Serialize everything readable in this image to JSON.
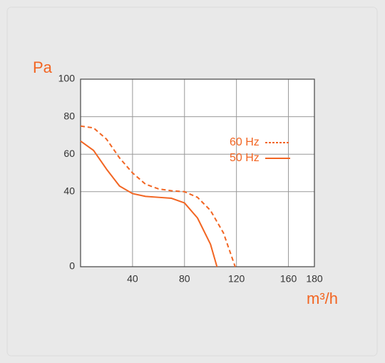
{
  "chart_data": {
    "type": "line",
    "y_label": "Pa",
    "x_label": "m³/h",
    "xlim": [
      0,
      180
    ],
    "xticks": [
      40,
      80,
      120,
      160,
      180
    ],
    "ylim": [
      0,
      100
    ],
    "yticks": [
      0,
      40,
      60,
      80,
      100
    ],
    "grid": true,
    "legend": "upper right",
    "series": [
      {
        "name": "60 Hz",
        "color": "#f26522",
        "style": "dashed",
        "x": [
          0,
          10,
          20,
          30,
          40,
          50,
          60,
          70,
          80,
          90,
          100,
          110,
          119
        ],
        "values": [
          75,
          74,
          68,
          58,
          50,
          44,
          41.5,
          40.5,
          40,
          37,
          30,
          18,
          0
        ]
      },
      {
        "name": "50 Hz",
        "color": "#f26522",
        "style": "solid",
        "x": [
          0,
          10,
          20,
          30,
          40,
          50,
          60,
          70,
          80,
          90,
          100,
          105
        ],
        "values": [
          67,
          62,
          52,
          43,
          39,
          37.5,
          37,
          36.5,
          34,
          26,
          12,
          0
        ]
      }
    ]
  }
}
